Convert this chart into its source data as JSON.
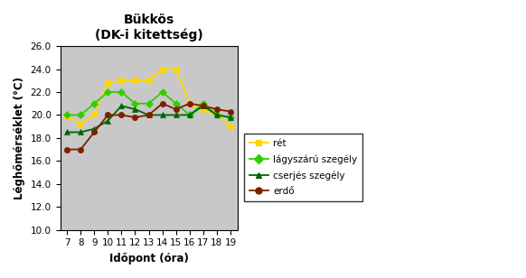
{
  "title_line1": "Bükkös",
  "title_line2": "(DK-i kitettség)",
  "xlabel": "Időpont (óra)",
  "ylabel": "Léghőmérséklet (°C)",
  "x": [
    7,
    8,
    9,
    10,
    11,
    12,
    13,
    14,
    15,
    16,
    17,
    18,
    19
  ],
  "ret": [
    19.9,
    19.2,
    20.1,
    22.8,
    23.0,
    23.0,
    23.0,
    24.0,
    24.0,
    21.0,
    20.5,
    20.0,
    19.0
  ],
  "lagyszaru": [
    20.0,
    20.0,
    21.0,
    22.0,
    22.0,
    21.0,
    21.0,
    22.0,
    21.0,
    20.0,
    21.0,
    20.0,
    19.8
  ],
  "cserjes": [
    18.5,
    18.5,
    18.8,
    19.5,
    20.8,
    20.5,
    20.0,
    20.0,
    20.0,
    20.0,
    20.8,
    20.0,
    19.8
  ],
  "erdo": [
    17.0,
    17.0,
    18.5,
    20.0,
    20.0,
    19.8,
    20.0,
    21.0,
    20.5,
    21.0,
    20.8,
    20.5,
    20.3
  ],
  "color_ret": "#FFD700",
  "color_lagyszaru": "#33CC00",
  "color_cserjes": "#006600",
  "color_erdo": "#7B2000",
  "ylim_min": 10.0,
  "ylim_max": 26.0,
  "yticks": [
    10.0,
    12.0,
    14.0,
    16.0,
    18.0,
    20.0,
    22.0,
    24.0,
    26.0
  ],
  "background_color": "#C8C8C8",
  "legend_labels": [
    "rét",
    "lágyszárú szegély",
    "cserjés szegély",
    "erdő"
  ]
}
